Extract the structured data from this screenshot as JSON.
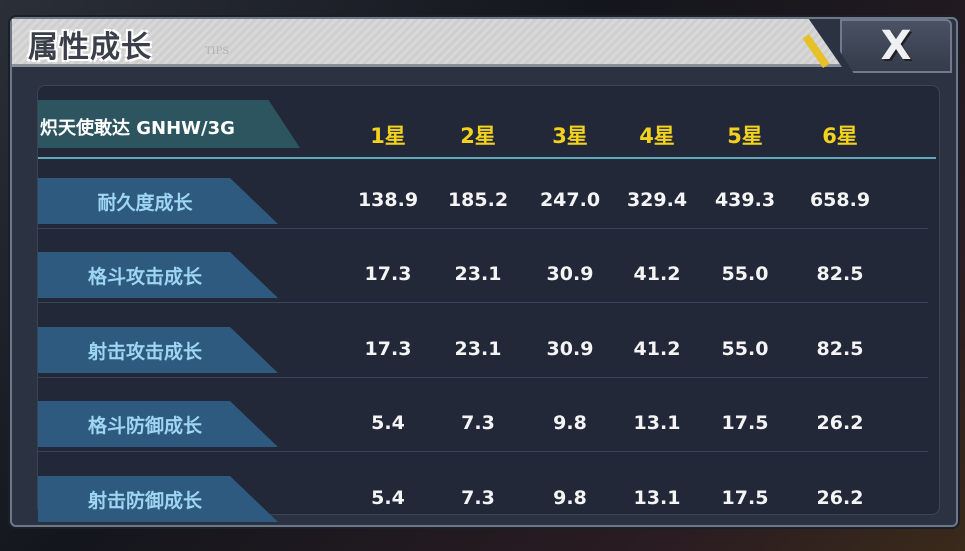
{
  "dialog": {
    "title": "属性成长",
    "tips": "TIPS",
    "close_label": "X"
  },
  "header": {
    "model": "炽天使敢达 GNHW/3G",
    "stars": [
      "1星",
      "2星",
      "3星",
      "4星",
      "5星",
      "6星"
    ]
  },
  "rows": [
    {
      "label": "耐久度成长",
      "values": [
        "138.9",
        "185.2",
        "247.0",
        "329.4",
        "439.3",
        "658.9"
      ]
    },
    {
      "label": "格斗攻击成长",
      "values": [
        "17.3",
        "23.1",
        "30.9",
        "41.2",
        "55.0",
        "82.5"
      ]
    },
    {
      "label": "射击攻击成长",
      "values": [
        "17.3",
        "23.1",
        "30.9",
        "41.2",
        "55.0",
        "82.5"
      ]
    },
    {
      "label": "格斗防御成长",
      "values": [
        "5.4",
        "7.3",
        "9.8",
        "13.1",
        "17.5",
        "26.2"
      ]
    },
    {
      "label": "射击防御成长",
      "values": [
        "5.4",
        "7.3",
        "9.8",
        "13.1",
        "17.5",
        "26.2"
      ]
    }
  ],
  "colors": {
    "star": "#f2d21e",
    "label": "#9ed6f2",
    "tag": "#2e5a80"
  }
}
